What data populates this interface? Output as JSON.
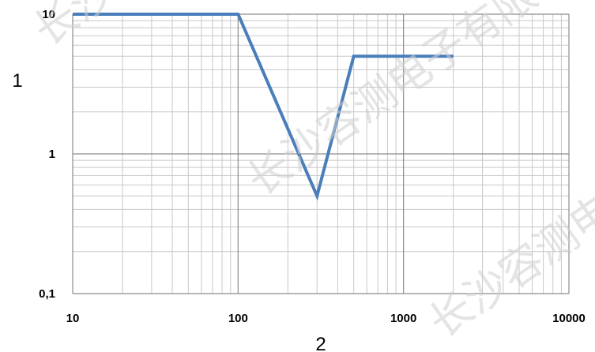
{
  "chart_data": {
    "type": "line",
    "xscale": "log",
    "yscale": "log",
    "xlim": [
      10,
      10000
    ],
    "ylim": [
      0.1,
      10
    ],
    "xlabel": "2",
    "ylabel": "1",
    "x_tick_labels": [
      "10",
      "100",
      "1000",
      "10000"
    ],
    "y_tick_labels": [
      "0,1",
      "1",
      "10"
    ],
    "grid": true,
    "series": [
      {
        "color": "#4a7ebb",
        "x": [
          10,
          100,
          300,
          500,
          2000
        ],
        "y": [
          10,
          10,
          0.5,
          5,
          5
        ]
      }
    ]
  },
  "watermark": [
    "长沙容测电子有限公司",
    "长沙容测电子有限公司",
    "长沙容测电子有限公司"
  ]
}
